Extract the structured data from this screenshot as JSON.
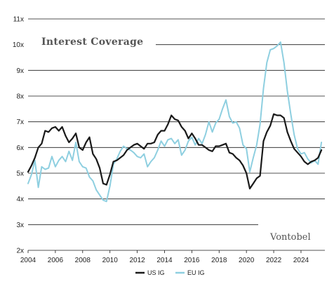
{
  "chart_data": {
    "type": "line",
    "title": "Interest Coverage",
    "brand": "Vontobel",
    "xlabel": "",
    "ylabel": "",
    "xlim": [
      2004,
      2025.75
    ],
    "ylim": [
      2,
      11
    ],
    "x_ticks": [
      2004,
      2006,
      2008,
      2010,
      2012,
      2014,
      2016,
      2018,
      2020,
      2022,
      2024
    ],
    "x_tick_labels": [
      "2004",
      "2006",
      "2008",
      "2010",
      "2012",
      "2014",
      "2016",
      "2018",
      "2020",
      "2022",
      "2024"
    ],
    "y_ticks": [
      2,
      3,
      4,
      5,
      6,
      7,
      8,
      9,
      10,
      11
    ],
    "y_tick_labels": [
      "2x",
      "3x",
      "4x",
      "5x",
      "6x",
      "7x",
      "8x",
      "9x",
      "10x",
      "11x"
    ],
    "grid": "horizontal",
    "legend_position": "bottom-center",
    "colors": {
      "us": "#1a1a1a",
      "eu": "#8ecfe0",
      "grid": "#1a1a1a"
    },
    "series": [
      {
        "name": "US IG",
        "x": [
          2004.0,
          2004.25,
          2004.5,
          2004.75,
          2005.0,
          2005.25,
          2005.5,
          2005.75,
          2006.0,
          2006.25,
          2006.5,
          2006.75,
          2007.0,
          2007.25,
          2007.5,
          2007.75,
          2008.0,
          2008.25,
          2008.5,
          2008.75,
          2009.0,
          2009.25,
          2009.5,
          2009.75,
          2010.0,
          2010.25,
          2010.5,
          2010.75,
          2011.0,
          2011.25,
          2011.5,
          2011.75,
          2012.0,
          2012.25,
          2012.5,
          2012.75,
          2013.0,
          2013.25,
          2013.5,
          2013.75,
          2014.0,
          2014.25,
          2014.5,
          2014.75,
          2015.0,
          2015.25,
          2015.5,
          2015.75,
          2016.0,
          2016.25,
          2016.5,
          2016.75,
          2017.0,
          2017.25,
          2017.5,
          2017.75,
          2018.0,
          2018.25,
          2018.5,
          2018.75,
          2019.0,
          2019.25,
          2019.5,
          2019.75,
          2020.0,
          2020.25,
          2020.5,
          2020.75,
          2021.0,
          2021.25,
          2021.5,
          2021.75,
          2022.0,
          2022.25,
          2022.5,
          2022.75,
          2023.0,
          2023.25,
          2023.5,
          2023.75,
          2024.0,
          2024.25,
          2024.5,
          2024.75,
          2025.0,
          2025.25,
          2025.5
        ],
        "values": [
          5.05,
          5.3,
          5.6,
          6.0,
          6.15,
          6.65,
          6.6,
          6.75,
          6.8,
          6.65,
          6.8,
          6.45,
          6.2,
          6.35,
          6.55,
          6.0,
          5.9,
          6.2,
          6.4,
          5.75,
          5.55,
          5.2,
          4.6,
          4.55,
          4.95,
          5.45,
          5.5,
          5.6,
          5.7,
          5.9,
          6.0,
          6.1,
          6.15,
          6.05,
          5.95,
          6.15,
          6.15,
          6.2,
          6.5,
          6.65,
          6.65,
          6.9,
          7.25,
          7.1,
          7.05,
          6.8,
          6.65,
          6.35,
          6.55,
          6.35,
          6.1,
          6.1,
          6.0,
          5.9,
          5.85,
          6.05,
          6.05,
          6.1,
          6.15,
          5.8,
          5.75,
          5.6,
          5.5,
          5.3,
          5.0,
          4.4,
          4.6,
          4.8,
          4.9,
          6.25,
          6.6,
          6.85,
          7.3,
          7.25,
          7.25,
          7.15,
          6.6,
          6.25,
          5.95,
          5.8,
          5.65,
          5.45,
          5.35,
          5.45,
          5.5,
          5.6,
          5.9
        ]
      },
      {
        "name": "EU IG",
        "x": [
          2004.0,
          2004.25,
          2004.5,
          2004.75,
          2005.0,
          2005.25,
          2005.5,
          2005.75,
          2006.0,
          2006.25,
          2006.5,
          2006.75,
          2007.0,
          2007.25,
          2007.5,
          2007.75,
          2008.0,
          2008.25,
          2008.5,
          2008.75,
          2009.0,
          2009.25,
          2009.5,
          2009.75,
          2010.0,
          2010.25,
          2010.5,
          2010.75,
          2011.0,
          2011.25,
          2011.5,
          2011.75,
          2012.0,
          2012.25,
          2012.5,
          2012.75,
          2013.0,
          2013.25,
          2013.5,
          2013.75,
          2014.0,
          2014.25,
          2014.5,
          2014.75,
          2015.0,
          2015.25,
          2015.5,
          2015.75,
          2016.0,
          2016.25,
          2016.5,
          2016.75,
          2017.0,
          2017.25,
          2017.5,
          2017.75,
          2018.0,
          2018.25,
          2018.5,
          2018.75,
          2019.0,
          2019.25,
          2019.5,
          2019.75,
          2020.0,
          2020.25,
          2020.5,
          2020.75,
          2021.0,
          2021.25,
          2021.5,
          2021.75,
          2022.0,
          2022.25,
          2022.5,
          2022.75,
          2023.0,
          2023.25,
          2023.5,
          2023.75,
          2024.0,
          2024.25,
          2024.5,
          2024.75,
          2025.0,
          2025.25,
          2025.5
        ],
        "values": [
          4.6,
          4.95,
          5.5,
          4.45,
          5.25,
          5.15,
          5.2,
          5.65,
          5.25,
          5.5,
          5.65,
          5.45,
          5.85,
          5.5,
          6.2,
          5.45,
          5.25,
          5.2,
          4.85,
          4.7,
          4.35,
          4.15,
          3.95,
          3.9,
          4.5,
          5.35,
          5.55,
          5.85,
          6.05,
          5.95,
          5.9,
          5.8,
          5.65,
          5.6,
          5.75,
          5.25,
          5.45,
          5.6,
          5.9,
          6.25,
          6.05,
          6.3,
          6.35,
          6.15,
          6.3,
          5.7,
          5.9,
          6.25,
          6.4,
          6.1,
          6.35,
          6.15,
          6.5,
          7.0,
          6.6,
          6.95,
          7.1,
          7.5,
          7.85,
          7.2,
          6.95,
          7.0,
          6.75,
          6.1,
          5.95,
          5.05,
          5.6,
          6.1,
          6.9,
          8.3,
          9.3,
          9.8,
          9.85,
          9.95,
          10.1,
          9.3,
          8.2,
          7.3,
          6.5,
          5.95,
          5.75,
          5.8,
          5.55,
          5.4,
          5.5,
          5.35,
          6.2
        ]
      }
    ]
  }
}
